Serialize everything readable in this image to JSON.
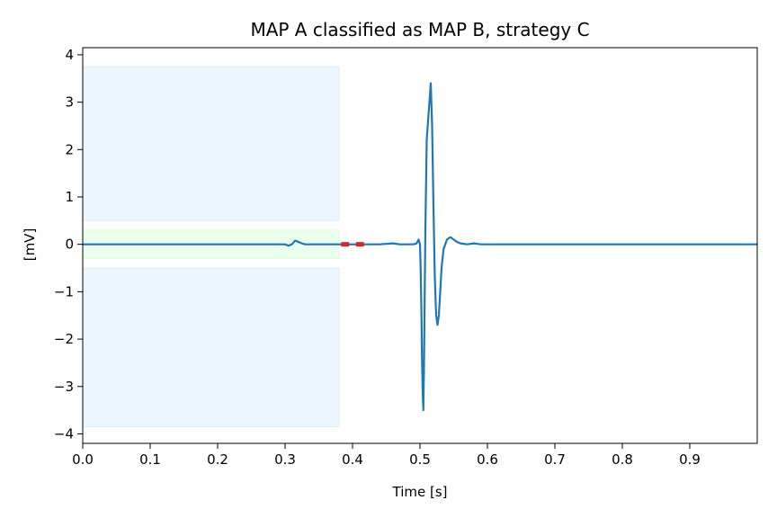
{
  "chart_data": {
    "type": "line",
    "title": "MAP A classified as MAP B, strategy C",
    "xlabel": "Time [s]",
    "ylabel": "[mV]",
    "xlim": [
      0.0,
      1.0
    ],
    "ylim": [
      -4.2,
      4.15
    ],
    "grid": false,
    "legend": "none",
    "x_ticks": [
      0.0,
      0.1,
      0.2,
      0.3,
      0.4,
      0.5,
      0.6,
      0.7,
      0.8,
      0.9
    ],
    "x_tick_labels": [
      "0.0",
      "0.1",
      "0.2",
      "0.3",
      "0.4",
      "0.5",
      "0.6",
      "0.7",
      "0.8",
      "0.9"
    ],
    "y_ticks": [
      4,
      3,
      2,
      1,
      0,
      -1,
      -2,
      -3,
      -4
    ],
    "y_tick_labels": [
      "4",
      "3",
      "2",
      "1",
      "0",
      "−1",
      "−2",
      "−3",
      "−4"
    ],
    "colors": {
      "line": "#1f77b4",
      "marker": "#d62728",
      "band_blue": "#ddeeff",
      "band_green": "#ddffdd"
    },
    "regions": [
      {
        "x0": 0.0,
        "x1": 0.38,
        "y0": 0.5,
        "y1": 3.75,
        "color": "band_blue"
      },
      {
        "x0": 0.0,
        "x1": 0.38,
        "y0": -3.85,
        "y1": -0.5,
        "color": "band_blue"
      },
      {
        "x0": 0.0,
        "x1": 0.38,
        "y0": -0.3,
        "y1": 0.3,
        "color": "band_green"
      }
    ],
    "markers": [
      {
        "x0": 0.383,
        "x1": 0.395,
        "y": 0.0
      },
      {
        "x0": 0.405,
        "x1": 0.417,
        "y": 0.0
      }
    ],
    "series": [
      {
        "x": [
          0.0,
          0.05,
          0.1,
          0.15,
          0.2,
          0.25,
          0.28,
          0.3,
          0.305,
          0.31,
          0.315,
          0.32,
          0.325,
          0.33,
          0.34,
          0.36,
          0.38,
          0.4,
          0.42,
          0.44,
          0.46,
          0.47,
          0.48,
          0.49,
          0.495,
          0.498,
          0.5,
          0.501,
          0.502,
          0.503,
          0.504,
          0.505,
          0.506,
          0.508,
          0.51,
          0.512,
          0.514,
          0.516,
          0.518,
          0.52,
          0.522,
          0.524,
          0.526,
          0.528,
          0.53,
          0.532,
          0.535,
          0.54,
          0.545,
          0.55,
          0.555,
          0.56,
          0.57,
          0.58,
          0.59,
          0.6,
          0.62,
          0.65,
          0.7,
          0.75,
          0.8,
          0.85,
          0.9,
          0.95,
          1.0
        ],
        "y": [
          0.0,
          0.0,
          0.0,
          0.0,
          0.0,
          0.0,
          0.0,
          0.0,
          -0.03,
          0.0,
          0.08,
          0.05,
          0.02,
          0.0,
          0.0,
          0.0,
          0.0,
          0.0,
          0.0,
          0.0,
          0.02,
          0.0,
          0.0,
          0.0,
          0.02,
          0.1,
          0.0,
          -0.5,
          -1.3,
          -2.4,
          -3.1,
          -3.5,
          -2.5,
          0.3,
          2.2,
          2.6,
          3.0,
          3.4,
          2.5,
          0.8,
          -0.7,
          -1.5,
          -1.7,
          -1.5,
          -1.0,
          -0.5,
          -0.1,
          0.1,
          0.15,
          0.1,
          0.05,
          0.02,
          0.0,
          0.02,
          0.0,
          0.0,
          0.0,
          0.0,
          0.0,
          0.0,
          0.0,
          0.0,
          0.0,
          0.0,
          0.0
        ]
      }
    ]
  }
}
